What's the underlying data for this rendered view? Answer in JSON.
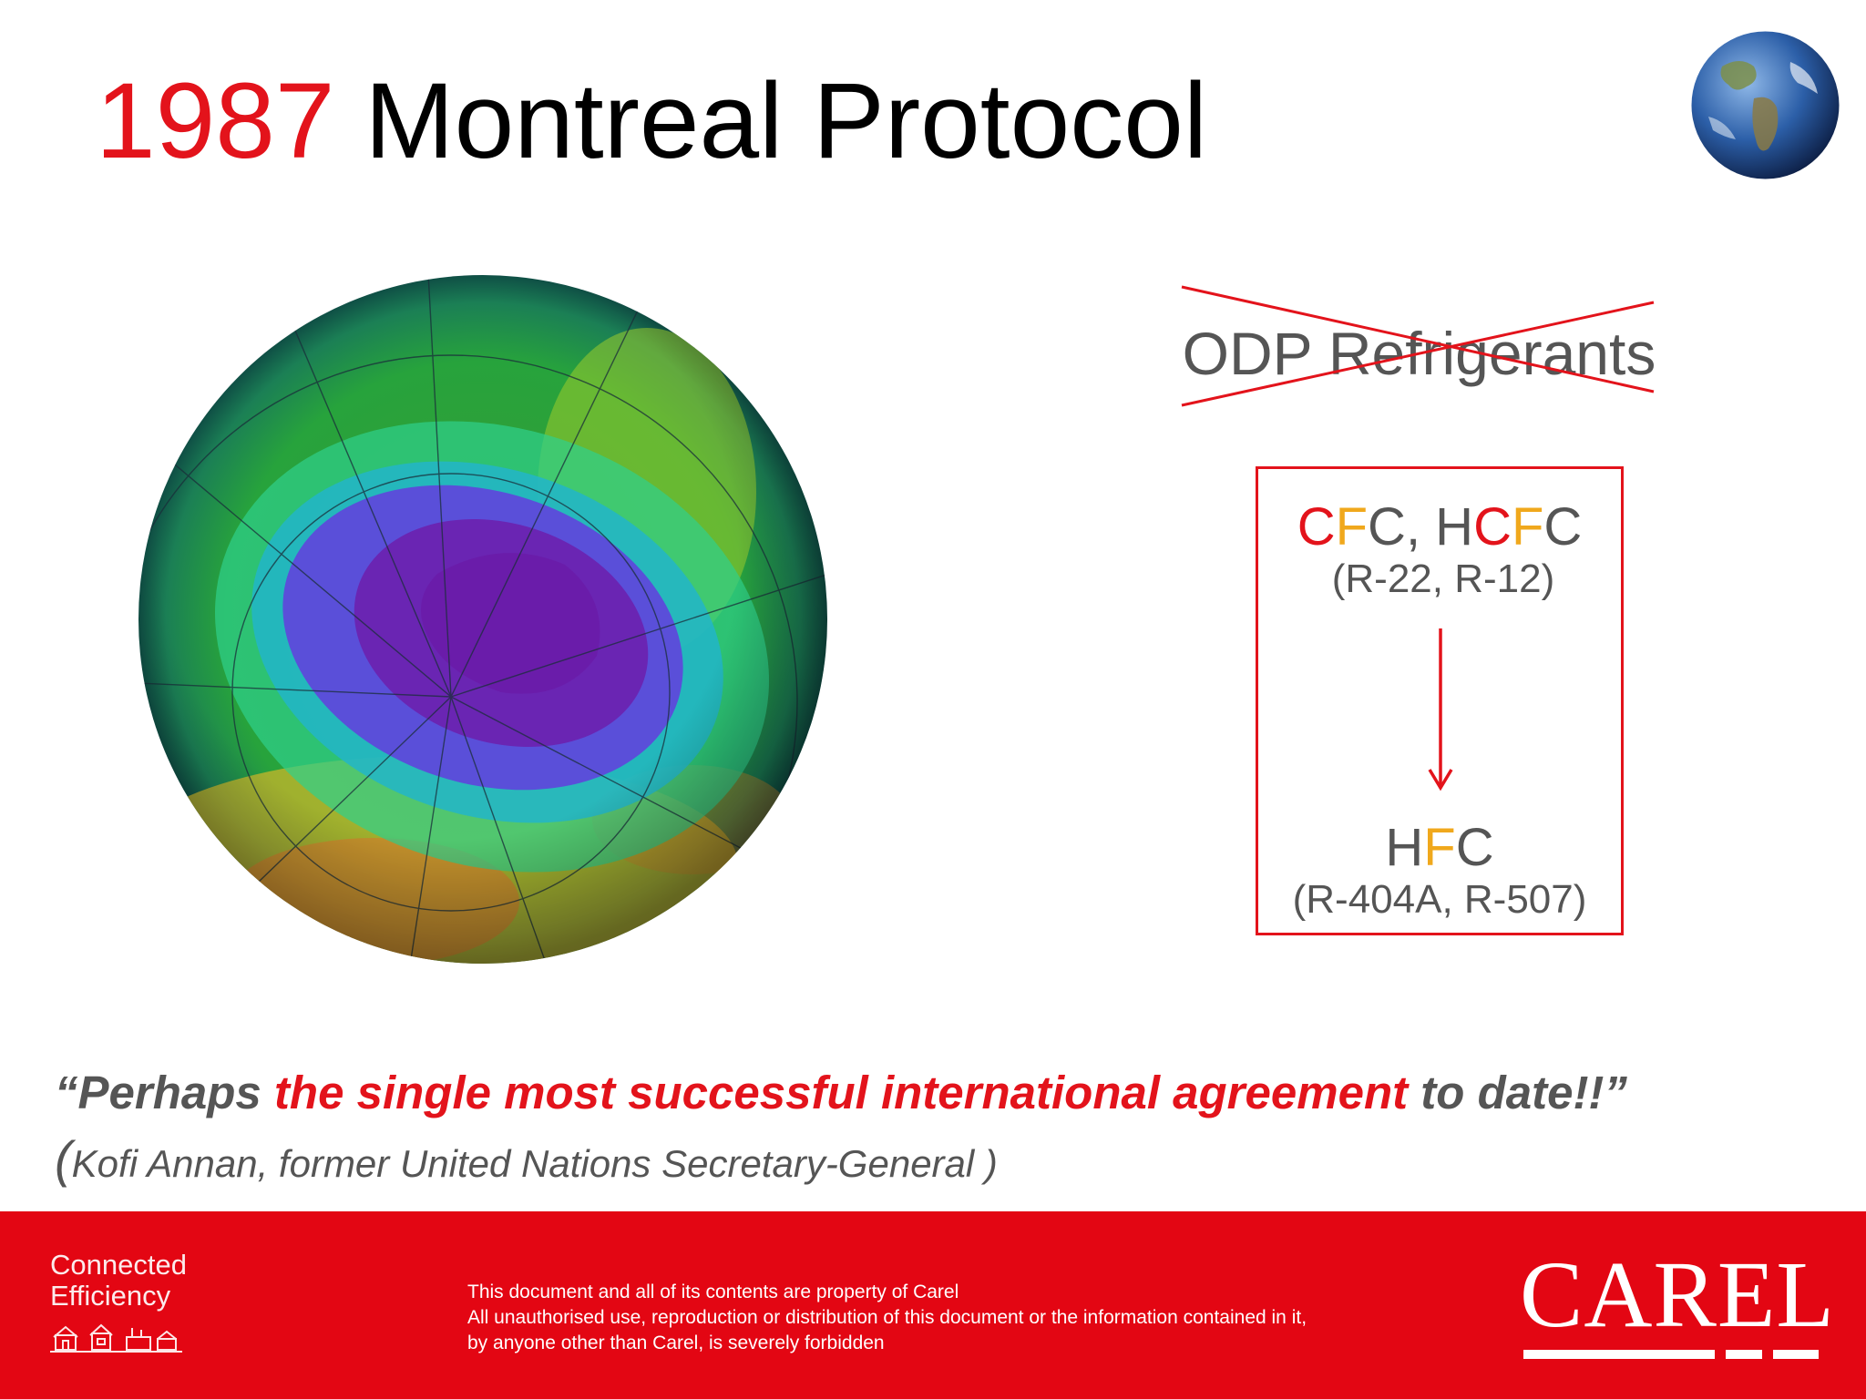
{
  "title": {
    "year": "1987",
    "text": " Montreal Protocol"
  },
  "odp": {
    "label": "ODP Refrigerants"
  },
  "refrigerants": {
    "old": {
      "parts": [
        "C",
        "F",
        "C",
        ", H",
        "C",
        "F",
        "C"
      ],
      "sub": "(R-22, R-12)"
    },
    "new": {
      "parts": [
        "H",
        "F",
        "C"
      ],
      "sub": "(R-404A, R-507)"
    }
  },
  "quote": {
    "open": "“Perhaps ",
    "highlight": "the single most successful international agreement",
    "close": " to date!!”",
    "attribution_paren": "(",
    "attribution": "Kofi Annan, former United Nations Secretary-General )"
  },
  "footer": {
    "tagline_1": "Connected",
    "tagline_2": "Efficiency",
    "disclaimer_1": "This document and all of its contents are property of Carel",
    "disclaimer_2": "All unauthorised use, reproduction or distribution of this document or the information contained in it,",
    "disclaimer_3": "by anyone other than Carel, is severely forbidden",
    "logo": "CAREL"
  },
  "colors": {
    "brand_red": "#e3131b",
    "footer_red": "#e30613",
    "fluorine_orange": "#f0a81c",
    "text_gray": "#555555"
  },
  "icons": {
    "top_right": "earth-globe-icon",
    "footer": "town-buildings-icon"
  }
}
